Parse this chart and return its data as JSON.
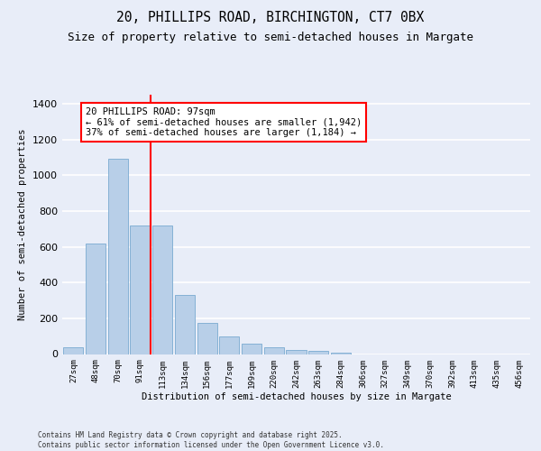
{
  "title_line1": "20, PHILLIPS ROAD, BIRCHINGTON, CT7 0BX",
  "title_line2": "Size of property relative to semi-detached houses in Margate",
  "xlabel": "Distribution of semi-detached houses by size in Margate",
  "ylabel": "Number of semi-detached properties",
  "categories": [
    "27sqm",
    "48sqm",
    "70sqm",
    "91sqm",
    "113sqm",
    "134sqm",
    "156sqm",
    "177sqm",
    "199sqm",
    "220sqm",
    "242sqm",
    "263sqm",
    "284sqm",
    "306sqm",
    "327sqm",
    "349sqm",
    "370sqm",
    "392sqm",
    "413sqm",
    "435sqm",
    "456sqm"
  ],
  "values": [
    40,
    620,
    1090,
    720,
    720,
    330,
    175,
    100,
    60,
    40,
    25,
    18,
    10,
    0,
    0,
    0,
    0,
    0,
    0,
    0,
    0
  ],
  "bar_color": "#b8cfe8",
  "bar_edge_color": "#7aaad0",
  "vline_color": "red",
  "annotation_line1": "20 PHILLIPS ROAD: 97sqm",
  "annotation_line2": "← 61% of semi-detached houses are smaller (1,942)",
  "annotation_line3": "37% of semi-detached houses are larger (1,184) →",
  "ylim": [
    0,
    1450
  ],
  "yticks": [
    0,
    200,
    400,
    600,
    800,
    1000,
    1200,
    1400
  ],
  "background_color": "#e8edf8",
  "plot_bg_color": "#e8edf8",
  "grid_color": "#ffffff",
  "footer_text": "Contains HM Land Registry data © Crown copyright and database right 2025.\nContains public sector information licensed under the Open Government Licence v3.0."
}
